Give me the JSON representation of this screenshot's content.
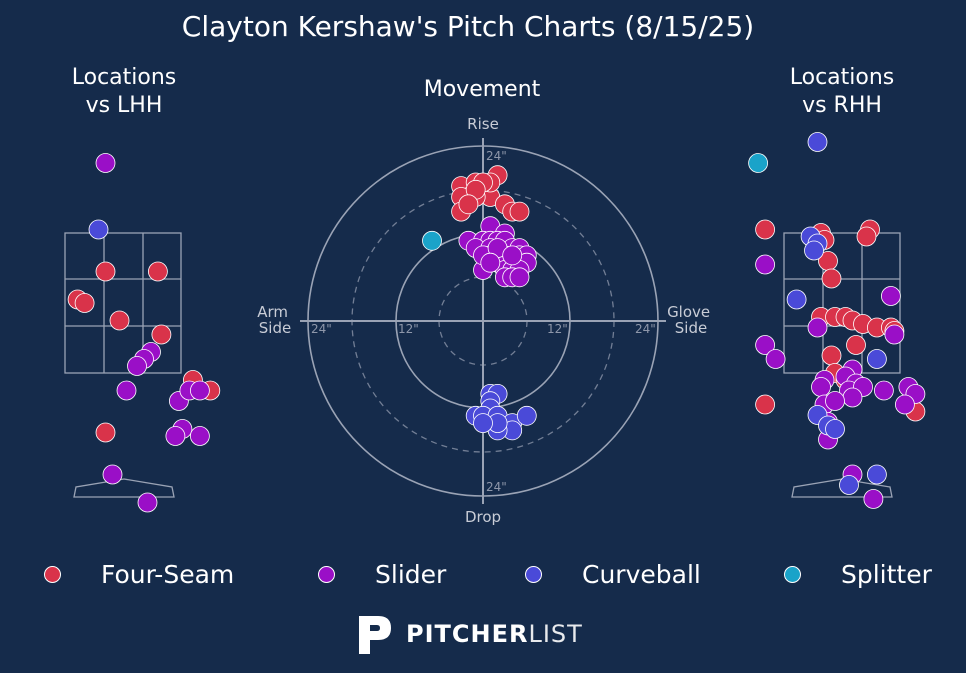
{
  "title": "Clayton Kershaw's Pitch Charts (8/15/25)",
  "colors": {
    "background": "#152b4b",
    "grid": "#9aa3b5",
    "Four-Seam": "#d9334a",
    "Slider": "#9a0fc7",
    "Curveball": "#4a4ad8",
    "Splitter": "#1aa3c9"
  },
  "panels": {
    "lhh_title": "Locations\nvs LHH",
    "movement_title": "Movement",
    "rhh_title": "Locations\nvs RHH"
  },
  "movement_labels": {
    "top": "Rise",
    "bottom": "Drop",
    "left": "Arm\nSide",
    "right": "Glove\nSide",
    "ring_24_top": "24\"",
    "ring_24_bottom": "24\"",
    "ring_24_left": "24\"",
    "ring_24_right": "24\"",
    "ring_12_left": "12\"",
    "ring_12_right": "12\""
  },
  "legend": [
    {
      "name": "Four-Seam",
      "icon": "legend-dot"
    },
    {
      "name": "Slider",
      "icon": "legend-dot"
    },
    {
      "name": "Curveball",
      "icon": "legend-dot"
    },
    {
      "name": "Splitter",
      "icon": "legend-dot"
    }
  ],
  "logo": {
    "bold": "PITCHER",
    "light": "LIST",
    "icon": "pitcherlist-p-icon"
  },
  "chart_data": [
    {
      "type": "scatter",
      "title": "Movement",
      "xlabel_left": "Arm Side",
      "xlabel_right": "Glove Side",
      "ylabel_top": "Rise",
      "ylabel_bottom": "Drop",
      "xlim": [
        -24,
        24
      ],
      "ylim": [
        -24,
        24
      ],
      "series": [
        {
          "name": "Four-Seam",
          "points": [
            [
              2,
              20
            ],
            [
              -2,
              18
            ],
            [
              -3,
              18.5
            ],
            [
              0,
              18
            ],
            [
              -1,
              19
            ],
            [
              1,
              17
            ],
            [
              3,
              16
            ],
            [
              -2,
              17
            ],
            [
              -1,
              17
            ],
            [
              1,
              19
            ],
            [
              0,
              19
            ],
            [
              -3,
              17
            ],
            [
              4,
              15
            ],
            [
              5,
              15
            ],
            [
              -3,
              15
            ],
            [
              -1,
              18
            ],
            [
              -2,
              16
            ]
          ]
        },
        {
          "name": "Slider",
          "points": [
            [
              1,
              13
            ],
            [
              3,
              12
            ],
            [
              -2,
              11
            ],
            [
              0,
              11
            ],
            [
              1,
              11
            ],
            [
              2,
              11
            ],
            [
              3,
              11
            ],
            [
              4,
              10
            ],
            [
              5,
              10
            ],
            [
              -1,
              10
            ],
            [
              1,
              10
            ],
            [
              2,
              9
            ],
            [
              3,
              9
            ],
            [
              4,
              8.5
            ],
            [
              5,
              9
            ],
            [
              6,
              9
            ],
            [
              6,
              8
            ],
            [
              1,
              9
            ],
            [
              2,
              8
            ],
            [
              3,
              7
            ],
            [
              4,
              7
            ],
            [
              5,
              7
            ],
            [
              0,
              7
            ],
            [
              3,
              6
            ],
            [
              4,
              6
            ],
            [
              5,
              6
            ],
            [
              0,
              9
            ],
            [
              2,
              10
            ],
            [
              1,
              8
            ],
            [
              4,
              9
            ]
          ]
        },
        {
          "name": "Curveball",
          "points": [
            [
              1,
              -10
            ],
            [
              2,
              -10
            ],
            [
              1,
              -11
            ],
            [
              1,
              -12
            ],
            [
              -1,
              -13
            ],
            [
              0,
              -13
            ],
            [
              2,
              -13
            ],
            [
              4,
              -14
            ],
            [
              4,
              -15
            ],
            [
              2,
              -15
            ],
            [
              2,
              -14
            ],
            [
              6,
              -13
            ],
            [
              0,
              -14
            ]
          ]
        },
        {
          "name": "Splitter",
          "points": [
            [
              -7,
              11
            ]
          ]
        }
      ]
    },
    {
      "type": "scatter",
      "title": "Locations vs LHH",
      "xlim": [
        -2.5,
        2.5
      ],
      "ylim": [
        -0.5,
        5
      ],
      "strike_zone": {
        "x": [
          -0.83,
          0.83
        ],
        "y": [
          1.5,
          3.5
        ]
      },
      "series": [
        {
          "name": "Four-Seam",
          "points": [
            [
              -0.25,
              2.95
            ],
            [
              0.5,
              2.95
            ],
            [
              -0.65,
              2.55
            ],
            [
              -0.55,
              2.5
            ],
            [
              -0.05,
              2.25
            ],
            [
              0.55,
              2.05
            ],
            [
              1,
              1.4
            ],
            [
              1.25,
              1.25
            ],
            [
              -0.25,
              0.65
            ]
          ]
        },
        {
          "name": "Slider",
          "points": [
            [
              -0.25,
              4.5
            ],
            [
              0.4,
              1.8
            ],
            [
              0.3,
              1.7
            ],
            [
              0.2,
              1.6
            ],
            [
              0.05,
              1.25
            ],
            [
              0.8,
              1.1
            ],
            [
              0.95,
              1.25
            ],
            [
              1.1,
              1.25
            ],
            [
              0.85,
              0.7
            ],
            [
              0.75,
              0.6
            ],
            [
              1.1,
              0.6
            ],
            [
              -0.15,
              0.05
            ],
            [
              0.35,
              -0.35
            ]
          ]
        },
        {
          "name": "Curveball",
          "points": [
            [
              -0.35,
              3.55
            ]
          ]
        }
      ]
    },
    {
      "type": "scatter",
      "title": "Locations vs RHH",
      "xlim": [
        -2.5,
        2.5
      ],
      "ylim": [
        -0.5,
        5
      ],
      "strike_zone": {
        "x": [
          -0.83,
          0.83
        ],
        "y": [
          1.5,
          3.5
        ]
      },
      "series": [
        {
          "name": "Four-Seam",
          "points": [
            [
              -1.1,
              3.55
            ],
            [
              0.4,
              3.55
            ],
            [
              0.35,
              3.45
            ],
            [
              -0.3,
              3.5
            ],
            [
              -0.25,
              3.4
            ],
            [
              -0.2,
              3.1
            ],
            [
              -0.15,
              2.85
            ],
            [
              -0.3,
              2.3
            ],
            [
              -0.1,
              2.3
            ],
            [
              0.05,
              2.3
            ],
            [
              0.15,
              2.25
            ],
            [
              0.3,
              2.2
            ],
            [
              0.5,
              2.15
            ],
            [
              0.2,
              1.9
            ],
            [
              0.7,
              2.15
            ],
            [
              0.75,
              2.1
            ],
            [
              -0.15,
              1.75
            ],
            [
              -0.1,
              1.5
            ],
            [
              0.05,
              1.4
            ],
            [
              -1.1,
              1.05
            ],
            [
              1.05,
              0.95
            ]
          ]
        },
        {
          "name": "Slider",
          "points": [
            [
              -1.1,
              3.05
            ],
            [
              0.7,
              2.6
            ],
            [
              -0.35,
              2.15
            ],
            [
              0.75,
              2.05
            ],
            [
              -1.1,
              1.9
            ],
            [
              -0.95,
              1.7
            ],
            [
              0.15,
              1.55
            ],
            [
              0.05,
              1.45
            ],
            [
              -0.25,
              1.4
            ],
            [
              0.2,
              1.35
            ],
            [
              -0.3,
              1.3
            ],
            [
              0.1,
              1.25
            ],
            [
              0.3,
              1.3
            ],
            [
              0.6,
              1.25
            ],
            [
              0.95,
              1.3
            ],
            [
              1.05,
              1.2
            ],
            [
              0.9,
              1.05
            ],
            [
              0.15,
              1.15
            ],
            [
              -0.25,
              1.05
            ],
            [
              -0.1,
              1.1
            ],
            [
              -0.2,
              0.8
            ],
            [
              -0.2,
              0.55
            ],
            [
              0.15,
              0.05
            ],
            [
              0.45,
              -0.3
            ]
          ]
        },
        {
          "name": "Curveball",
          "points": [
            [
              -0.35,
              4.8
            ],
            [
              -0.45,
              3.45
            ],
            [
              -0.35,
              3.35
            ],
            [
              -0.4,
              3.25
            ],
            [
              -0.65,
              2.55
            ],
            [
              0.5,
              1.7
            ],
            [
              -0.35,
              0.9
            ],
            [
              -0.2,
              0.75
            ],
            [
              -0.1,
              0.7
            ],
            [
              0.5,
              0.05
            ],
            [
              0.1,
              -0.1
            ]
          ]
        },
        {
          "name": "Splitter",
          "points": [
            [
              -1.2,
              4.5
            ]
          ]
        }
      ]
    }
  ]
}
